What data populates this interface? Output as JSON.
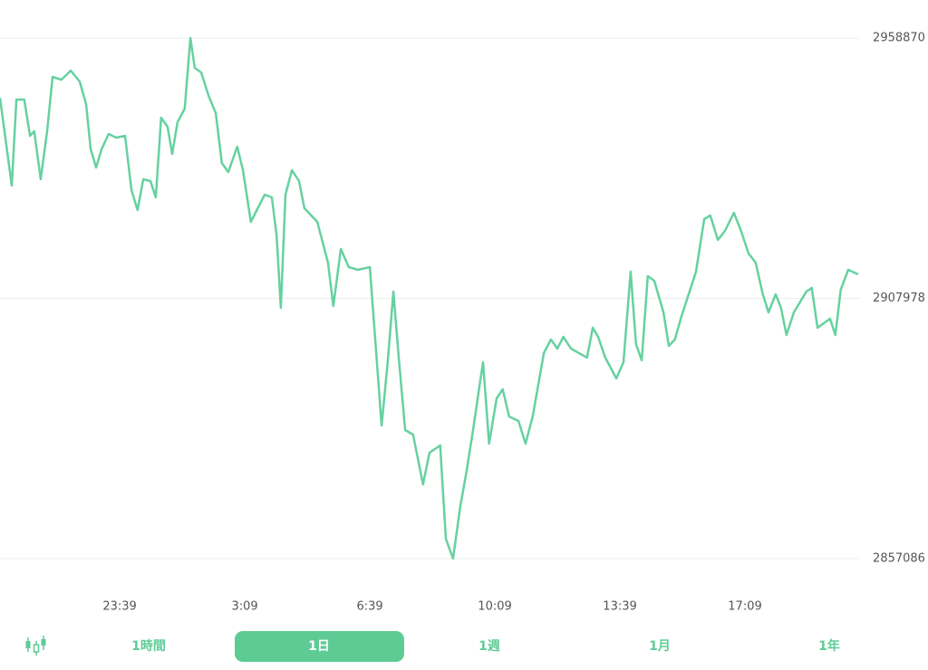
{
  "chart_data": {
    "type": "line",
    "x": [
      0.0,
      0.33,
      0.46,
      0.68,
      0.84,
      0.96,
      1.14,
      1.32,
      1.47,
      1.72,
      1.98,
      2.23,
      2.41,
      2.54,
      2.69,
      2.84,
      3.04,
      3.25,
      3.5,
      3.68,
      3.85,
      4.01,
      4.21,
      4.36,
      4.51,
      4.69,
      4.82,
      4.97,
      5.17,
      5.33,
      5.45,
      5.63,
      5.83,
      6.04,
      6.21,
      6.39,
      6.64,
      6.8,
      7.02,
      7.41,
      7.61,
      7.74,
      7.86,
      7.99,
      8.17,
      8.37,
      8.52,
      8.88,
      9.18,
      9.33,
      9.54,
      9.76,
      10.02,
      10.35,
      10.55,
      10.68,
      10.85,
      11.01,
      11.16,
      11.34,
      11.56,
      11.84,
      12.02,
      12.32,
      12.48,
      12.68,
      12.88,
      13.06,
      13.24,
      13.52,
      13.69,
      13.9,
      14.07,
      14.25,
      14.51,
      14.71,
      14.91,
      15.22,
      15.42,
      15.6,
      15.77,
      15.98,
      16.43,
      16.59,
      16.74,
      16.94,
      17.25,
      17.45,
      17.65,
      17.8,
      17.96,
      18.13,
      18.31,
      18.57,
      18.72,
      18.89,
      19.07,
      19.48,
      19.71,
      19.88,
      20.09,
      20.29,
      20.54,
      20.74,
      20.95,
      21.15,
      21.35,
      21.51,
      21.71,
      21.86,
      22.01,
      22.22,
      22.57,
      22.72,
      22.88,
      23.23,
      23.38,
      23.53,
      23.74,
      24.02
    ],
    "series": [
      {
        "color": "#66d1a0",
        "values": [
          2947188,
          2930019,
          2946834,
          2946834,
          2939754,
          2940639,
          2931258,
          2940639,
          2951259,
          2950728,
          2952498,
          2950374,
          2945949,
          2937099,
          2933559,
          2937099,
          2940108,
          2939400,
          2939754,
          2929134,
          2925240,
          2931258,
          2930904,
          2927718,
          2943294,
          2941524,
          2936214,
          2942409,
          2945064,
          2958870,
          2953029,
          2952144,
          2947719,
          2944179,
          2934444,
          2932674,
          2937630,
          2933028,
          2922939,
          2928249,
          2927718,
          2920284,
          2906124,
          2928249,
          2933028,
          2930904,
          2925594,
          2922939,
          2914974,
          2906478,
          2917629,
          2914089,
          2913558,
          2914089,
          2895504,
          2883114,
          2895504,
          2909310,
          2896389,
          2882229,
          2881344,
          2871609,
          2877804,
          2879220,
          2860989,
          2857086,
          2867184,
          2874264,
          2882229,
          2895504,
          2879574,
          2888424,
          2890194,
          2884884,
          2883999,
          2879574,
          2884884,
          2897274,
          2899929,
          2898159,
          2900460,
          2898159,
          2896389,
          2902230,
          2900460,
          2896389,
          2892318,
          2895504,
          2913204,
          2899044,
          2895858,
          2912319,
          2911434,
          2905239,
          2898690,
          2899929,
          2904354,
          2913204,
          2923470,
          2924178,
          2919399,
          2921169,
          2924709,
          2921169,
          2916744,
          2914974,
          2908779,
          2905239,
          2908779,
          2906124,
          2900814,
          2905239,
          2909310,
          2910018,
          2902230,
          2904000,
          2900814,
          2909664,
          2913558,
          2912673
        ]
      }
    ],
    "xlim": [
      0,
      24.02
    ],
    "xticks": [
      {
        "value": 3.35,
        "label": "23:39"
      },
      {
        "value": 6.85,
        "label": "3:09"
      },
      {
        "value": 10.35,
        "label": "6:39"
      },
      {
        "value": 13.85,
        "label": "10:09"
      },
      {
        "value": 17.35,
        "label": "13:39"
      },
      {
        "value": 20.85,
        "label": "17:09"
      }
    ],
    "ylim": [
      2857086,
      2958870
    ],
    "yticks": [
      2857086,
      2907978,
      2958870
    ],
    "grid": true
  },
  "tabs": [
    {
      "label": "1時間"
    },
    {
      "label": "1日",
      "selected": true
    },
    {
      "label": "1週"
    },
    {
      "label": "1月"
    },
    {
      "label": "1年"
    }
  ]
}
